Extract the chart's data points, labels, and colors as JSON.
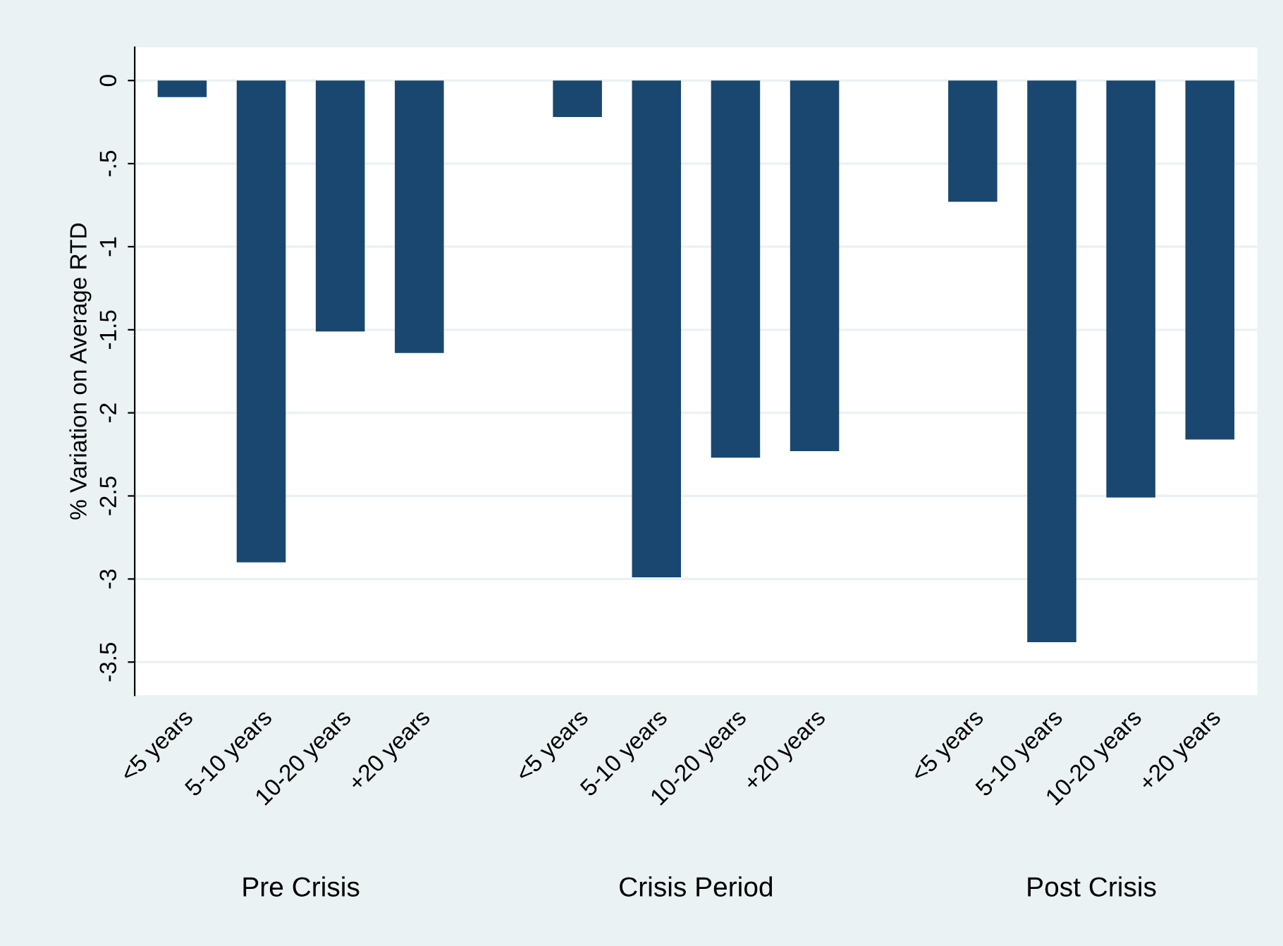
{
  "chart_data": {
    "type": "bar",
    "ylabel": "% Variation on Average RTD",
    "categories": [
      "<5 years",
      "5-10 years",
      "10-20 years",
      "+20 years",
      null,
      "<5 years",
      "5-10 years",
      "10-20 years",
      "+20 years",
      null,
      "<5 years",
      "5-10 years",
      "10-20 years",
      "+20 years"
    ],
    "values": [
      -0.1,
      -2.9,
      -1.51,
      -1.64,
      null,
      -0.22,
      -2.99,
      -2.27,
      -2.23,
      null,
      -0.73,
      -3.38,
      -2.51,
      -2.16
    ],
    "color": "#1a476f",
    "annotations": [
      "Pre Crisis",
      "Crisis Period",
      "Post Crisis"
    ],
    "ylim": [
      -3.7,
      0.2
    ],
    "yticks": [
      0,
      {
        "value": -0.5,
        "label": "-.5"
      },
      -1,
      {
        "value": -1.5,
        "label": "-1.5"
      },
      -2,
      {
        "value": -2.5,
        "label": "-2.5"
      },
      -3,
      {
        "value": -3.5,
        "label": "-3.5"
      }
    ],
    "grid": "y"
  }
}
